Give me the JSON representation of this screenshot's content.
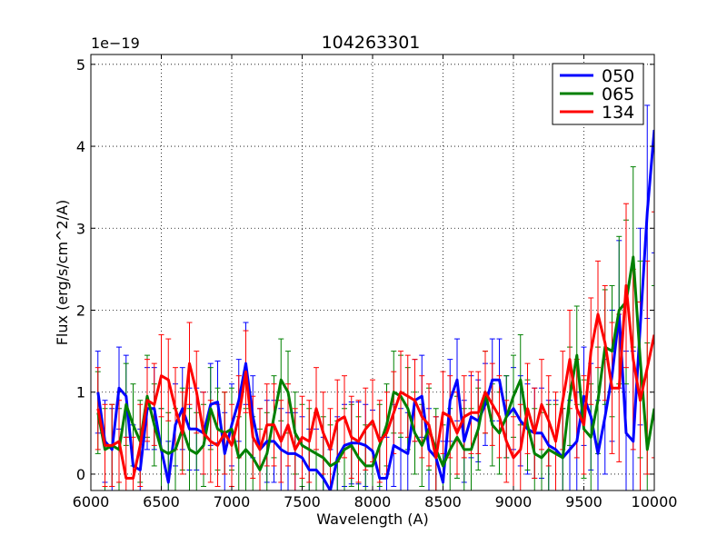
{
  "chart_data": {
    "type": "line",
    "title": "104263301",
    "xlabel": "Wavelength (A)",
    "ylabel": "Flux (erg/s/cm^2/A)",
    "offset_label": "1e−19",
    "xlim": [
      6000,
      10000
    ],
    "ylim": [
      -0.2,
      5.12
    ],
    "xticks": [
      6000,
      6500,
      7000,
      7500,
      8000,
      8500,
      9000,
      9500,
      10000
    ],
    "yticks": [
      0,
      1,
      2,
      3,
      4,
      5
    ],
    "grid": true,
    "legend_position": "top-right",
    "series": [
      {
        "name": "050",
        "color": "#0000ff",
        "x": [
          6050,
          6100,
          6150,
          6200,
          6250,
          6300,
          6350,
          6400,
          6450,
          6500,
          6550,
          6600,
          6650,
          6700,
          6750,
          6800,
          6850,
          6900,
          6950,
          7000,
          7050,
          7100,
          7150,
          7200,
          7250,
          7300,
          7350,
          7400,
          7450,
          7500,
          7550,
          7600,
          7650,
          7700,
          7750,
          7800,
          7850,
          7900,
          7950,
          8000,
          8050,
          8100,
          8150,
          8200,
          8250,
          8300,
          8350,
          8400,
          8450,
          8500,
          8550,
          8600,
          8650,
          8700,
          8750,
          8800,
          8850,
          8900,
          8950,
          9000,
          9050,
          9100,
          9150,
          9200,
          9250,
          9300,
          9350,
          9400,
          9450,
          9500,
          9550,
          9600,
          9650,
          9700,
          9750,
          9800,
          9850,
          9900,
          9950,
          10000
        ],
        "y": [
          1.0,
          0.4,
          0.3,
          1.05,
          0.95,
          0.1,
          0.05,
          0.8,
          0.8,
          0.3,
          -0.1,
          0.6,
          0.8,
          0.55,
          0.55,
          0.5,
          0.85,
          0.88,
          0.25,
          0.6,
          0.9,
          1.35,
          0.7,
          0.3,
          0.4,
          0.4,
          0.3,
          0.25,
          0.25,
          0.2,
          0.05,
          0.05,
          -0.05,
          -0.2,
          0.2,
          0.35,
          0.38,
          0.38,
          0.35,
          0.28,
          -0.05,
          -0.05,
          0.35,
          0.3,
          0.25,
          0.9,
          0.95,
          0.3,
          0.2,
          -0.1,
          0.9,
          1.15,
          0.4,
          0.7,
          0.65,
          0.85,
          1.15,
          1.15,
          0.7,
          0.8,
          0.65,
          0.55,
          0.5,
          0.5,
          0.35,
          0.3,
          0.2,
          0.3,
          0.4,
          0.95,
          0.7,
          0.25,
          0.7,
          1.2,
          1.95,
          0.5,
          0.4,
          1.8,
          3.2,
          4.2
        ],
        "err": [
          0.5,
          0.5,
          0.5,
          0.5,
          0.5,
          0.5,
          0.5,
          0.5,
          0.5,
          0.5,
          0.5,
          0.5,
          0.5,
          0.5,
          0.5,
          0.5,
          0.5,
          0.5,
          0.5,
          0.5,
          0.5,
          0.5,
          0.5,
          0.5,
          0.5,
          0.5,
          0.5,
          0.5,
          0.5,
          0.5,
          0.5,
          0.5,
          0.5,
          0.5,
          0.5,
          0.5,
          0.5,
          0.5,
          0.5,
          0.5,
          0.5,
          0.5,
          0.5,
          0.5,
          0.5,
          0.5,
          0.5,
          0.5,
          0.5,
          0.5,
          0.5,
          0.5,
          0.5,
          0.5,
          0.5,
          0.5,
          0.5,
          0.5,
          0.5,
          0.5,
          0.55,
          0.55,
          0.55,
          0.55,
          0.55,
          0.6,
          0.6,
          0.6,
          0.6,
          0.6,
          0.65,
          0.65,
          0.7,
          0.8,
          0.9,
          1.0,
          1.1,
          1.2,
          1.3,
          1.5
        ]
      },
      {
        "name": "065",
        "color": "#008000",
        "x": [
          6050,
          6100,
          6150,
          6200,
          6250,
          6300,
          6350,
          6400,
          6450,
          6500,
          6550,
          6600,
          6650,
          6700,
          6750,
          6800,
          6850,
          6900,
          6950,
          7000,
          7050,
          7100,
          7150,
          7200,
          7250,
          7300,
          7350,
          7400,
          7450,
          7500,
          7550,
          7600,
          7650,
          7700,
          7750,
          7800,
          7850,
          7900,
          7950,
          8000,
          8050,
          8100,
          8150,
          8200,
          8250,
          8300,
          8350,
          8400,
          8450,
          8500,
          8550,
          8600,
          8650,
          8700,
          8750,
          8800,
          8850,
          8900,
          8950,
          9000,
          9050,
          9100,
          9150,
          9200,
          9250,
          9300,
          9350,
          9400,
          9450,
          9500,
          9550,
          9600,
          9650,
          9700,
          9750,
          9800,
          9850,
          9900,
          9950,
          10000
        ],
        "y": [
          0.75,
          0.3,
          0.35,
          0.3,
          0.85,
          0.6,
          0.4,
          0.95,
          0.6,
          0.3,
          0.25,
          0.3,
          0.55,
          0.3,
          0.25,
          0.35,
          0.8,
          0.55,
          0.5,
          0.55,
          0.2,
          0.3,
          0.2,
          0.05,
          0.25,
          0.7,
          1.15,
          1.0,
          0.5,
          0.35,
          0.3,
          0.25,
          0.2,
          0.1,
          0.15,
          0.3,
          0.35,
          0.2,
          0.1,
          0.1,
          0.35,
          0.6,
          1.0,
          0.95,
          0.8,
          0.5,
          0.35,
          0.55,
          0.3,
          0.1,
          0.3,
          0.45,
          0.3,
          0.3,
          0.55,
          1.0,
          0.6,
          0.5,
          0.7,
          0.95,
          1.15,
          0.6,
          0.25,
          0.2,
          0.3,
          0.25,
          0.2,
          0.95,
          1.45,
          0.55,
          0.45,
          0.9,
          1.55,
          1.5,
          2.0,
          2.1,
          2.65,
          1.4,
          0.3,
          0.8
        ],
        "err": [
          0.5,
          0.5,
          0.5,
          0.5,
          0.5,
          0.5,
          0.5,
          0.5,
          0.5,
          0.5,
          0.5,
          0.5,
          0.5,
          0.5,
          0.5,
          0.5,
          0.5,
          0.5,
          0.5,
          0.5,
          0.5,
          0.5,
          0.5,
          0.5,
          0.5,
          0.5,
          0.5,
          0.5,
          0.5,
          0.5,
          0.5,
          0.5,
          0.5,
          0.5,
          0.5,
          0.5,
          0.5,
          0.5,
          0.5,
          0.5,
          0.5,
          0.5,
          0.5,
          0.5,
          0.5,
          0.5,
          0.5,
          0.5,
          0.5,
          0.5,
          0.5,
          0.5,
          0.5,
          0.5,
          0.5,
          0.5,
          0.5,
          0.5,
          0.5,
          0.5,
          0.55,
          0.55,
          0.55,
          0.55,
          0.55,
          0.6,
          0.6,
          0.6,
          0.6,
          0.6,
          0.65,
          0.65,
          0.7,
          0.8,
          0.9,
          1.0,
          1.1,
          1.2,
          1.3,
          1.5
        ]
      },
      {
        "name": "134",
        "color": "#ff0000",
        "x": [
          6050,
          6100,
          6150,
          6200,
          6250,
          6300,
          6350,
          6400,
          6450,
          6500,
          6550,
          6600,
          6650,
          6700,
          6750,
          6800,
          6850,
          6900,
          6950,
          7000,
          7050,
          7100,
          7150,
          7200,
          7250,
          7300,
          7350,
          7400,
          7450,
          7500,
          7550,
          7600,
          7650,
          7700,
          7750,
          7800,
          7850,
          7900,
          7950,
          8000,
          8050,
          8100,
          8150,
          8200,
          8250,
          8300,
          8350,
          8400,
          8450,
          8500,
          8550,
          8600,
          8650,
          8700,
          8750,
          8800,
          8850,
          8900,
          8950,
          9000,
          9050,
          9100,
          9150,
          9200,
          9250,
          9300,
          9350,
          9400,
          9450,
          9500,
          9550,
          9600,
          9650,
          9700,
          9750,
          9800,
          9850,
          9900,
          9950,
          10000
        ],
        "y": [
          0.8,
          0.35,
          0.35,
          0.4,
          -0.05,
          -0.05,
          0.35,
          0.9,
          0.85,
          1.2,
          1.15,
          0.8,
          0.5,
          1.35,
          1.0,
          0.5,
          0.4,
          0.35,
          0.5,
          0.35,
          0.7,
          1.25,
          0.45,
          0.3,
          0.6,
          0.6,
          0.4,
          0.6,
          0.3,
          0.45,
          0.4,
          0.8,
          0.5,
          0.3,
          0.65,
          0.7,
          0.45,
          0.4,
          0.55,
          0.65,
          0.4,
          0.5,
          0.75,
          1.0,
          0.95,
          0.9,
          0.7,
          0.6,
          0.2,
          0.75,
          0.7,
          0.5,
          0.7,
          0.75,
          0.75,
          1.0,
          0.85,
          0.7,
          0.4,
          0.2,
          0.3,
          0.8,
          0.5,
          0.85,
          0.65,
          0.4,
          0.9,
          1.4,
          0.8,
          0.6,
          1.5,
          1.95,
          1.6,
          1.05,
          1.05,
          2.3,
          1.4,
          0.9,
          1.3,
          1.7
        ],
        "err": [
          0.5,
          0.5,
          0.5,
          0.5,
          0.5,
          0.5,
          0.5,
          0.5,
          0.5,
          0.5,
          0.5,
          0.5,
          0.5,
          0.5,
          0.5,
          0.5,
          0.5,
          0.5,
          0.5,
          0.5,
          0.5,
          0.5,
          0.5,
          0.5,
          0.5,
          0.5,
          0.5,
          0.5,
          0.5,
          0.5,
          0.5,
          0.5,
          0.5,
          0.5,
          0.5,
          0.5,
          0.5,
          0.5,
          0.5,
          0.5,
          0.5,
          0.5,
          0.5,
          0.5,
          0.5,
          0.5,
          0.5,
          0.5,
          0.5,
          0.5,
          0.5,
          0.5,
          0.5,
          0.5,
          0.5,
          0.5,
          0.5,
          0.5,
          0.5,
          0.5,
          0.55,
          0.55,
          0.55,
          0.55,
          0.55,
          0.6,
          0.6,
          0.6,
          0.6,
          0.6,
          0.65,
          0.65,
          0.7,
          0.8,
          0.9,
          1.0,
          1.1,
          1.2,
          1.3,
          1.5
        ]
      }
    ]
  }
}
